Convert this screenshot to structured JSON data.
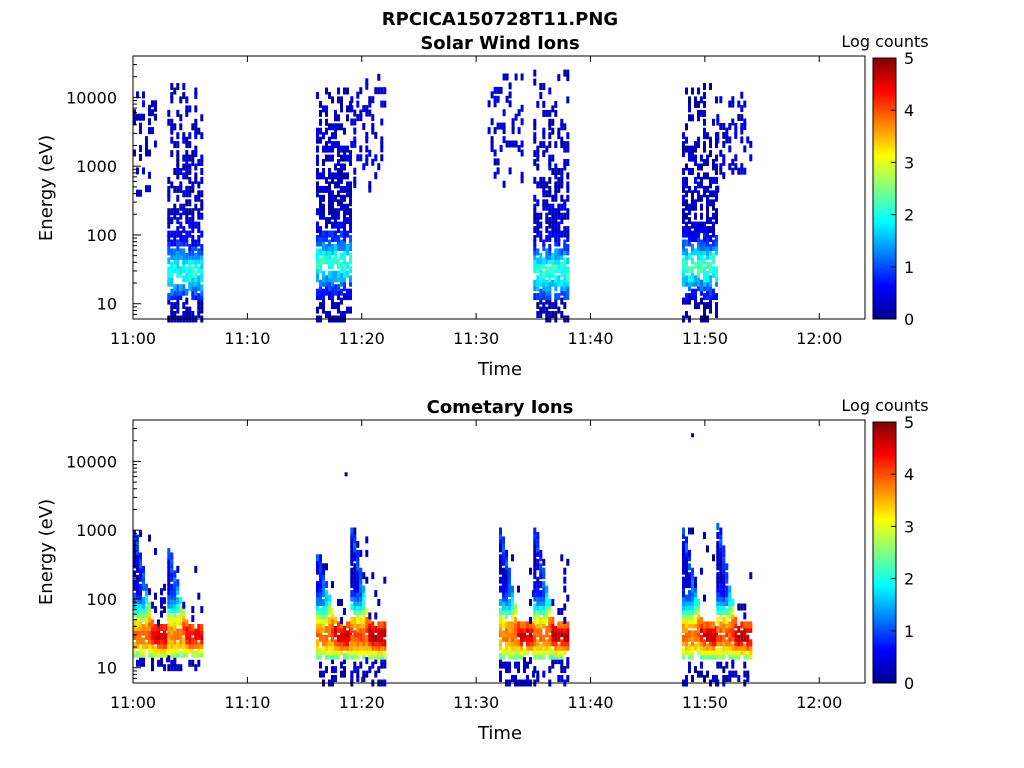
{
  "figure_title": "RPCICA150728T11.PNG",
  "colormap_stops": [
    "#00008f",
    "#0000ff",
    "#0080ff",
    "#00ffff",
    "#80ff80",
    "#ffff00",
    "#ff8000",
    "#ff0000",
    "#800000"
  ],
  "chart_data": [
    {
      "type": "heatmap",
      "title": "Solar Wind Ions",
      "xlabel": "Time",
      "ylabel": "Energy (eV)",
      "colorbar_label": "Log counts",
      "colorbar_range": [
        0,
        5
      ],
      "colorbar_ticks": [
        "0",
        "1",
        "2",
        "3",
        "4",
        "5"
      ],
      "x_range_minutes_after": "11:00 to 12:04",
      "x_ticks": [
        "11:00",
        "11:10",
        "11:20",
        "11:30",
        "11:40",
        "11:50",
        "12:00"
      ],
      "y_scale": "log",
      "y_range_eV": [
        6,
        40000
      ],
      "y_ticks": [
        "10",
        "100",
        "1000",
        "10000"
      ],
      "grid": false,
      "bursts": [
        {
          "t_start": "11:00",
          "t_end": "11:02",
          "e_min_eV": 300,
          "e_max_eV": 14000,
          "peak_log_counts": 0.4,
          "peak_e_eV": 3000,
          "kind": "sparse"
        },
        {
          "t_start": "11:03",
          "t_end": "11:06",
          "e_min_eV": 6,
          "e_max_eV": 16000,
          "peak_log_counts": 1.7,
          "peak_e_eV": 30,
          "kind": "dense"
        },
        {
          "t_start": "11:16",
          "t_end": "11:19",
          "e_min_eV": 6,
          "e_max_eV": 14000,
          "peak_log_counts": 1.8,
          "peak_e_eV": 40,
          "kind": "dense"
        },
        {
          "t_start": "11:19",
          "t_end": "11:22",
          "e_min_eV": 400,
          "e_max_eV": 20000,
          "peak_log_counts": 0.4,
          "peak_e_eV": 3000,
          "kind": "sparse"
        },
        {
          "t_start": "11:31",
          "t_end": "11:34",
          "e_min_eV": 300,
          "e_max_eV": 20000,
          "peak_log_counts": 0.4,
          "peak_e_eV": 3000,
          "kind": "sparse"
        },
        {
          "t_start": "11:35",
          "t_end": "11:38",
          "e_min_eV": 6,
          "e_max_eV": 26000,
          "peak_log_counts": 1.8,
          "peak_e_eV": 30,
          "kind": "dense"
        },
        {
          "t_start": "11:48",
          "t_end": "11:51",
          "e_min_eV": 6,
          "e_max_eV": 16000,
          "peak_log_counts": 1.9,
          "peak_e_eV": 35,
          "kind": "dense"
        },
        {
          "t_start": "11:51",
          "t_end": "11:54",
          "e_min_eV": 400,
          "e_max_eV": 12000,
          "peak_log_counts": 0.4,
          "peak_e_eV": 3000,
          "kind": "sparse"
        }
      ]
    },
    {
      "type": "heatmap",
      "title": "Cometary Ions",
      "xlabel": "Time",
      "ylabel": "Energy (eV)",
      "colorbar_label": "Log counts",
      "colorbar_range": [
        0,
        5
      ],
      "colorbar_ticks": [
        "0",
        "1",
        "2",
        "3",
        "4",
        "5"
      ],
      "x_range_minutes_after": "11:00 to 12:04",
      "x_ticks": [
        "11:00",
        "11:10",
        "11:20",
        "11:30",
        "11:40",
        "11:50",
        "12:00"
      ],
      "y_scale": "log",
      "y_range_eV": [
        6,
        40000
      ],
      "y_ticks": [
        "10",
        "100",
        "1000",
        "10000"
      ],
      "grid": false,
      "bursts": [
        {
          "t_start": "11:00",
          "t_end": "11:03",
          "e_min_eV": 10,
          "e_max_eV": 1000,
          "peak_log_counts": 3.6,
          "peak_e_eV": 30,
          "kind": "cometary"
        },
        {
          "t_start": "11:03",
          "t_end": "11:06",
          "e_min_eV": 10,
          "e_max_eV": 500,
          "peak_log_counts": 3.5,
          "peak_e_eV": 30,
          "kind": "cometary"
        },
        {
          "t_start": "11:16",
          "t_end": "11:19",
          "e_min_eV": 6,
          "e_max_eV": 450,
          "peak_log_counts": 3.6,
          "peak_e_eV": 30,
          "kind": "cometary"
        },
        {
          "t_start": "11:19",
          "t_end": "11:22",
          "e_min_eV": 6,
          "e_max_eV": 1100,
          "peak_log_counts": 3.8,
          "peak_e_eV": 30,
          "kind": "cometary"
        },
        {
          "t_start": "11:32",
          "t_end": "11:35",
          "e_min_eV": 6,
          "e_max_eV": 1000,
          "peak_log_counts": 3.6,
          "peak_e_eV": 30,
          "kind": "cometary"
        },
        {
          "t_start": "11:35",
          "t_end": "11:38",
          "e_min_eV": 6,
          "e_max_eV": 1100,
          "peak_log_counts": 3.7,
          "peak_e_eV": 30,
          "kind": "cometary"
        },
        {
          "t_start": "11:48",
          "t_end": "11:51",
          "e_min_eV": 6,
          "e_max_eV": 1000,
          "peak_log_counts": 3.6,
          "peak_e_eV": 30,
          "kind": "cometary"
        },
        {
          "t_start": "11:51",
          "t_end": "11:54",
          "e_min_eV": 6,
          "e_max_eV": 1300,
          "peak_log_counts": 3.8,
          "peak_e_eV": 30,
          "kind": "cometary"
        }
      ],
      "outliers": [
        {
          "t": "11:18.5",
          "e_eV": 6500
        },
        {
          "t": "11:48.8",
          "e_eV": 24000
        }
      ]
    }
  ]
}
